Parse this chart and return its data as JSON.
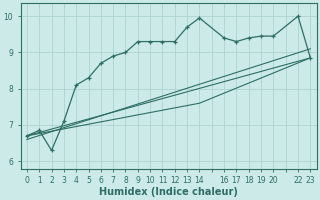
{
  "xlabel": "Humidex (Indice chaleur)",
  "bg_color": "#cceae7",
  "line_color": "#2e6e65",
  "grid_color": "#aed4d0",
  "xlim": [
    -0.5,
    23.5
  ],
  "ylim": [
    5.8,
    10.35
  ],
  "yticks": [
    6,
    7,
    8,
    9,
    10
  ],
  "xtick_positions": [
    0,
    1,
    2,
    3,
    4,
    5,
    6,
    7,
    8,
    9,
    10,
    11,
    12,
    13,
    14,
    16,
    17,
    18,
    19,
    20,
    22,
    23
  ],
  "xtick_labels": [
    "0",
    "1",
    "2",
    "3",
    "4",
    "5",
    "6",
    "7",
    "8",
    "9",
    "10",
    "11",
    "12",
    "13",
    "14",
    "16",
    "17",
    "18",
    "19",
    "20",
    "22",
    "23"
  ],
  "series1_x": [
    0,
    1,
    2,
    3,
    4,
    5,
    6,
    7,
    8,
    9,
    10,
    11,
    12,
    13,
    14,
    16,
    17,
    18,
    19,
    20,
    22,
    23
  ],
  "series1_y": [
    6.7,
    6.85,
    6.3,
    7.1,
    8.1,
    8.3,
    8.7,
    8.9,
    9.0,
    9.3,
    9.3,
    9.3,
    9.3,
    9.7,
    9.95,
    9.4,
    9.3,
    9.4,
    9.45,
    9.45,
    10.0,
    8.85
  ],
  "line2_x": [
    0,
    23
  ],
  "line2_y": [
    6.7,
    8.85
  ],
  "line3_x": [
    0,
    23
  ],
  "line3_y": [
    6.6,
    9.1
  ],
  "line4_x": [
    0,
    14,
    23
  ],
  "line4_y": [
    6.7,
    7.6,
    8.85
  ]
}
